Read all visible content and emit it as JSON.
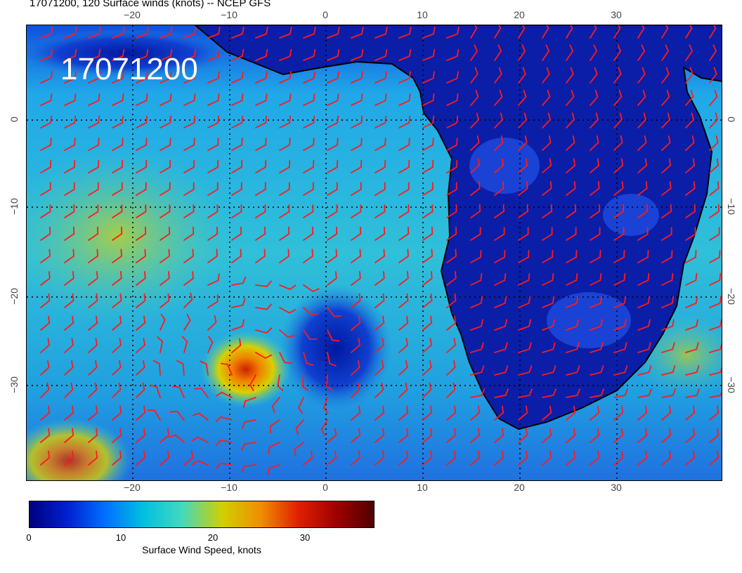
{
  "title": "17071200, 120 Surface winds (knots) -- NCEP GFS",
  "stamp": "17071200",
  "axes": {
    "lon_labels": [
      "−20",
      "−10",
      "0",
      "10",
      "20",
      "30"
    ],
    "lat_labels": [
      "0",
      "−10",
      "−20",
      "−30"
    ]
  },
  "colorbar": {
    "label": "Surface Wind Speed, knots",
    "ticks": [
      "0",
      "10",
      "20",
      "30"
    ],
    "colors": [
      "#000080",
      "#0020d0",
      "#0070ff",
      "#00c0e0",
      "#40d8c0",
      "#d0d000",
      "#f09000",
      "#e02000",
      "#a00000",
      "#500000"
    ]
  },
  "colors": {
    "barb": "#ff1a1a",
    "coast": "#000000",
    "grid": "#000000"
  }
}
